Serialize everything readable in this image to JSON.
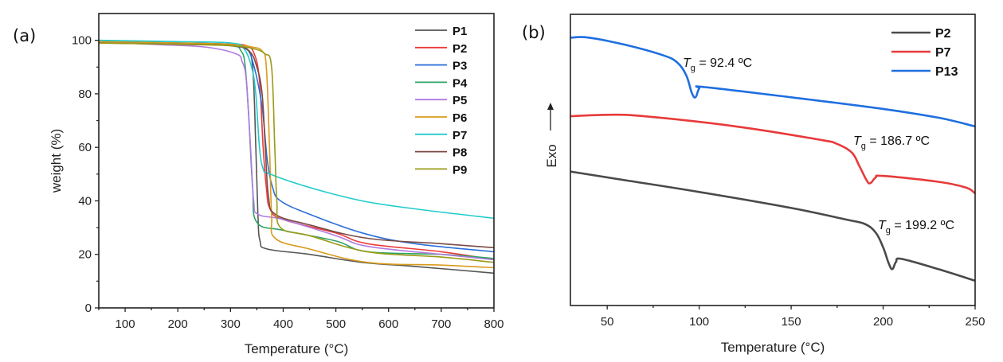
{
  "chart_data": [
    {
      "type": "line",
      "panel_label": "(a)",
      "title": "",
      "xlabel": "Temperature (°C)",
      "ylabel": "weight (%)",
      "xlim": [
        50,
        800
      ],
      "ylim": [
        0,
        110
      ],
      "xticks": [
        100,
        200,
        300,
        400,
        500,
        600,
        700,
        800
      ],
      "yticks": [
        0,
        20,
        40,
        60,
        80,
        100
      ],
      "grid": false,
      "legend_position": "top-right",
      "series": [
        {
          "name": "P1",
          "color": "#555555",
          "points": [
            [
              50,
              99.5
            ],
            [
              200,
              99
            ],
            [
              300,
              98.5
            ],
            [
              330,
              97
            ],
            [
              342,
              90
            ],
            [
              348,
              60
            ],
            [
              352,
              35
            ],
            [
              356,
              25
            ],
            [
              370,
              22
            ],
            [
              450,
              20
            ],
            [
              550,
              17
            ],
            [
              650,
              15.5
            ],
            [
              800,
              13
            ]
          ]
        },
        {
          "name": "P2",
          "color": "#ee3a3a",
          "points": [
            [
              50,
              99.5
            ],
            [
              200,
              99
            ],
            [
              300,
              98.5
            ],
            [
              330,
              98
            ],
            [
              345,
              95
            ],
            [
              355,
              85
            ],
            [
              362,
              60
            ],
            [
              368,
              45
            ],
            [
              375,
              37
            ],
            [
              400,
              33
            ],
            [
              500,
              28
            ],
            [
              560,
              24
            ],
            [
              700,
              21
            ],
            [
              800,
              18
            ]
          ]
        },
        {
          "name": "P3",
          "color": "#2a6fdb",
          "points": [
            [
              50,
              99.5
            ],
            [
              200,
              99
            ],
            [
              300,
              98.5
            ],
            [
              330,
              97
            ],
            [
              345,
              90
            ],
            [
              360,
              75
            ],
            [
              370,
              55
            ],
            [
              380,
              45
            ],
            [
              395,
              40
            ],
            [
              450,
              35
            ],
            [
              550,
              28
            ],
            [
              650,
              24
            ],
            [
              800,
              21
            ]
          ]
        },
        {
          "name": "P4",
          "color": "#2ea365",
          "points": [
            [
              50,
              99.5
            ],
            [
              200,
              99
            ],
            [
              300,
              98
            ],
            [
              320,
              96
            ],
            [
              328,
              90
            ],
            [
              335,
              70
            ],
            [
              342,
              45
            ],
            [
              350,
              32
            ],
            [
              400,
              29
            ],
            [
              500,
              25
            ],
            [
              560,
              21
            ],
            [
              700,
              20
            ],
            [
              800,
              18.5
            ]
          ]
        },
        {
          "name": "P5",
          "color": "#b07ae0",
          "points": [
            [
              50,
              99.5
            ],
            [
              150,
              98.5
            ],
            [
              250,
              97.5
            ],
            [
              310,
              95
            ],
            [
              322,
              92
            ],
            [
              330,
              85
            ],
            [
              338,
              60
            ],
            [
              344,
              40
            ],
            [
              352,
              35
            ],
            [
              400,
              33
            ],
            [
              500,
              27
            ],
            [
              560,
              23
            ],
            [
              700,
              20
            ],
            [
              800,
              18
            ]
          ]
        },
        {
          "name": "P6",
          "color": "#d99a1a",
          "points": [
            [
              50,
              99.5
            ],
            [
              200,
              99
            ],
            [
              300,
              98.5
            ],
            [
              340,
              97.5
            ],
            [
              360,
              96
            ],
            [
              368,
              90
            ],
            [
              374,
              60
            ],
            [
              378,
              35
            ],
            [
              385,
              26
            ],
            [
              450,
              22
            ],
            [
              560,
              17
            ],
            [
              700,
              16
            ],
            [
              800,
              15
            ]
          ]
        },
        {
          "name": "P7",
          "color": "#22cccc",
          "points": [
            [
              50,
              100
            ],
            [
              200,
              99.5
            ],
            [
              300,
              99
            ],
            [
              325,
              97
            ],
            [
              340,
              90
            ],
            [
              348,
              80
            ],
            [
              355,
              60
            ],
            [
              362,
              52
            ],
            [
              375,
              50
            ],
            [
              450,
              45
            ],
            [
              550,
              40
            ],
            [
              650,
              37
            ],
            [
              800,
              33.5
            ]
          ]
        },
        {
          "name": "P8",
          "color": "#7a4a44",
          "points": [
            [
              50,
              99
            ],
            [
              200,
              98.5
            ],
            [
              300,
              98
            ],
            [
              335,
              96
            ],
            [
              350,
              90
            ],
            [
              360,
              80
            ],
            [
              366,
              60
            ],
            [
              372,
              42
            ],
            [
              385,
              35
            ],
            [
              450,
              31
            ],
            [
              560,
              26
            ],
            [
              700,
              24
            ],
            [
              800,
              22.5
            ]
          ]
        },
        {
          "name": "P9",
          "color": "#9a9a18",
          "points": [
            [
              50,
              99
            ],
            [
              200,
              98.5
            ],
            [
              300,
              98
            ],
            [
              340,
              97
            ],
            [
              365,
              95
            ],
            [
              378,
              90
            ],
            [
              384,
              60
            ],
            [
              388,
              40
            ],
            [
              395,
              30
            ],
            [
              450,
              27
            ],
            [
              560,
              21
            ],
            [
              700,
              19
            ],
            [
              800,
              17
            ]
          ]
        }
      ]
    },
    {
      "type": "line",
      "panel_label": "(b)",
      "title": "",
      "xlabel": "Temperature (°C)",
      "ylabel": "Exo",
      "ylabel_arrow": "up",
      "xlim": [
        30,
        250
      ],
      "ylim": [
        0,
        100
      ],
      "xticks": [
        50,
        100,
        150,
        200,
        250
      ],
      "yticks": [],
      "grid": false,
      "legend_position": "top-right",
      "series": [
        {
          "name": "P2",
          "color": "#4a4a4a",
          "points": [
            [
              30,
              46
            ],
            [
              60,
              43
            ],
            [
              100,
              39
            ],
            [
              150,
              33.5
            ],
            [
              180,
              29.5
            ],
            [
              190,
              28
            ],
            [
              196,
              25
            ],
            [
              200,
              20
            ],
            [
              203,
              14.5
            ],
            [
              205,
              12.5
            ],
            [
              207,
              15
            ],
            [
              210,
              16
            ],
            [
              230,
              12.5
            ],
            [
              250,
              8.5
            ]
          ]
        },
        {
          "name": "P7",
          "color": "#e83a3a",
          "points": [
            [
              30,
              65
            ],
            [
              50,
              65.5
            ],
            [
              70,
              65
            ],
            [
              120,
              61.5
            ],
            [
              165,
              57
            ],
            [
              175,
              55.5
            ],
            [
              183,
              52.5
            ],
            [
              187,
              48
            ],
            [
              191,
              43
            ],
            [
              193,
              42
            ],
            [
              196,
              44
            ],
            [
              200,
              44.5
            ],
            [
              230,
              42.5
            ],
            [
              245,
              40.5
            ],
            [
              250,
              38.5
            ]
          ]
        },
        {
          "name": "P13",
          "color": "#1f6fe0",
          "points": [
            [
              30,
              92
            ],
            [
              40,
              92
            ],
            [
              60,
              89.5
            ],
            [
              80,
              86
            ],
            [
              88,
              83.5
            ],
            [
              93,
              79
            ],
            [
              96,
              73
            ],
            [
              98,
              71.5
            ],
            [
              100,
              74.5
            ],
            [
              103,
              75
            ],
            [
              150,
              71.5
            ],
            [
              200,
              67.5
            ],
            [
              230,
              64.5
            ],
            [
              250,
              61.5
            ]
          ]
        }
      ],
      "annotations": [
        {
          "text_italic": "T",
          "subscript": "g",
          "text": " = 92.4 ºC",
          "series": "P13",
          "value_c": 92.4
        },
        {
          "text_italic": "T",
          "subscript": "g",
          "text": " = 186.7 ºC",
          "series": "P7",
          "value_c": 186.7
        },
        {
          "text_italic": "T",
          "subscript": "g",
          "text": " = 199.2 ºC",
          "series": "P2",
          "value_c": 199.2
        }
      ]
    }
  ]
}
